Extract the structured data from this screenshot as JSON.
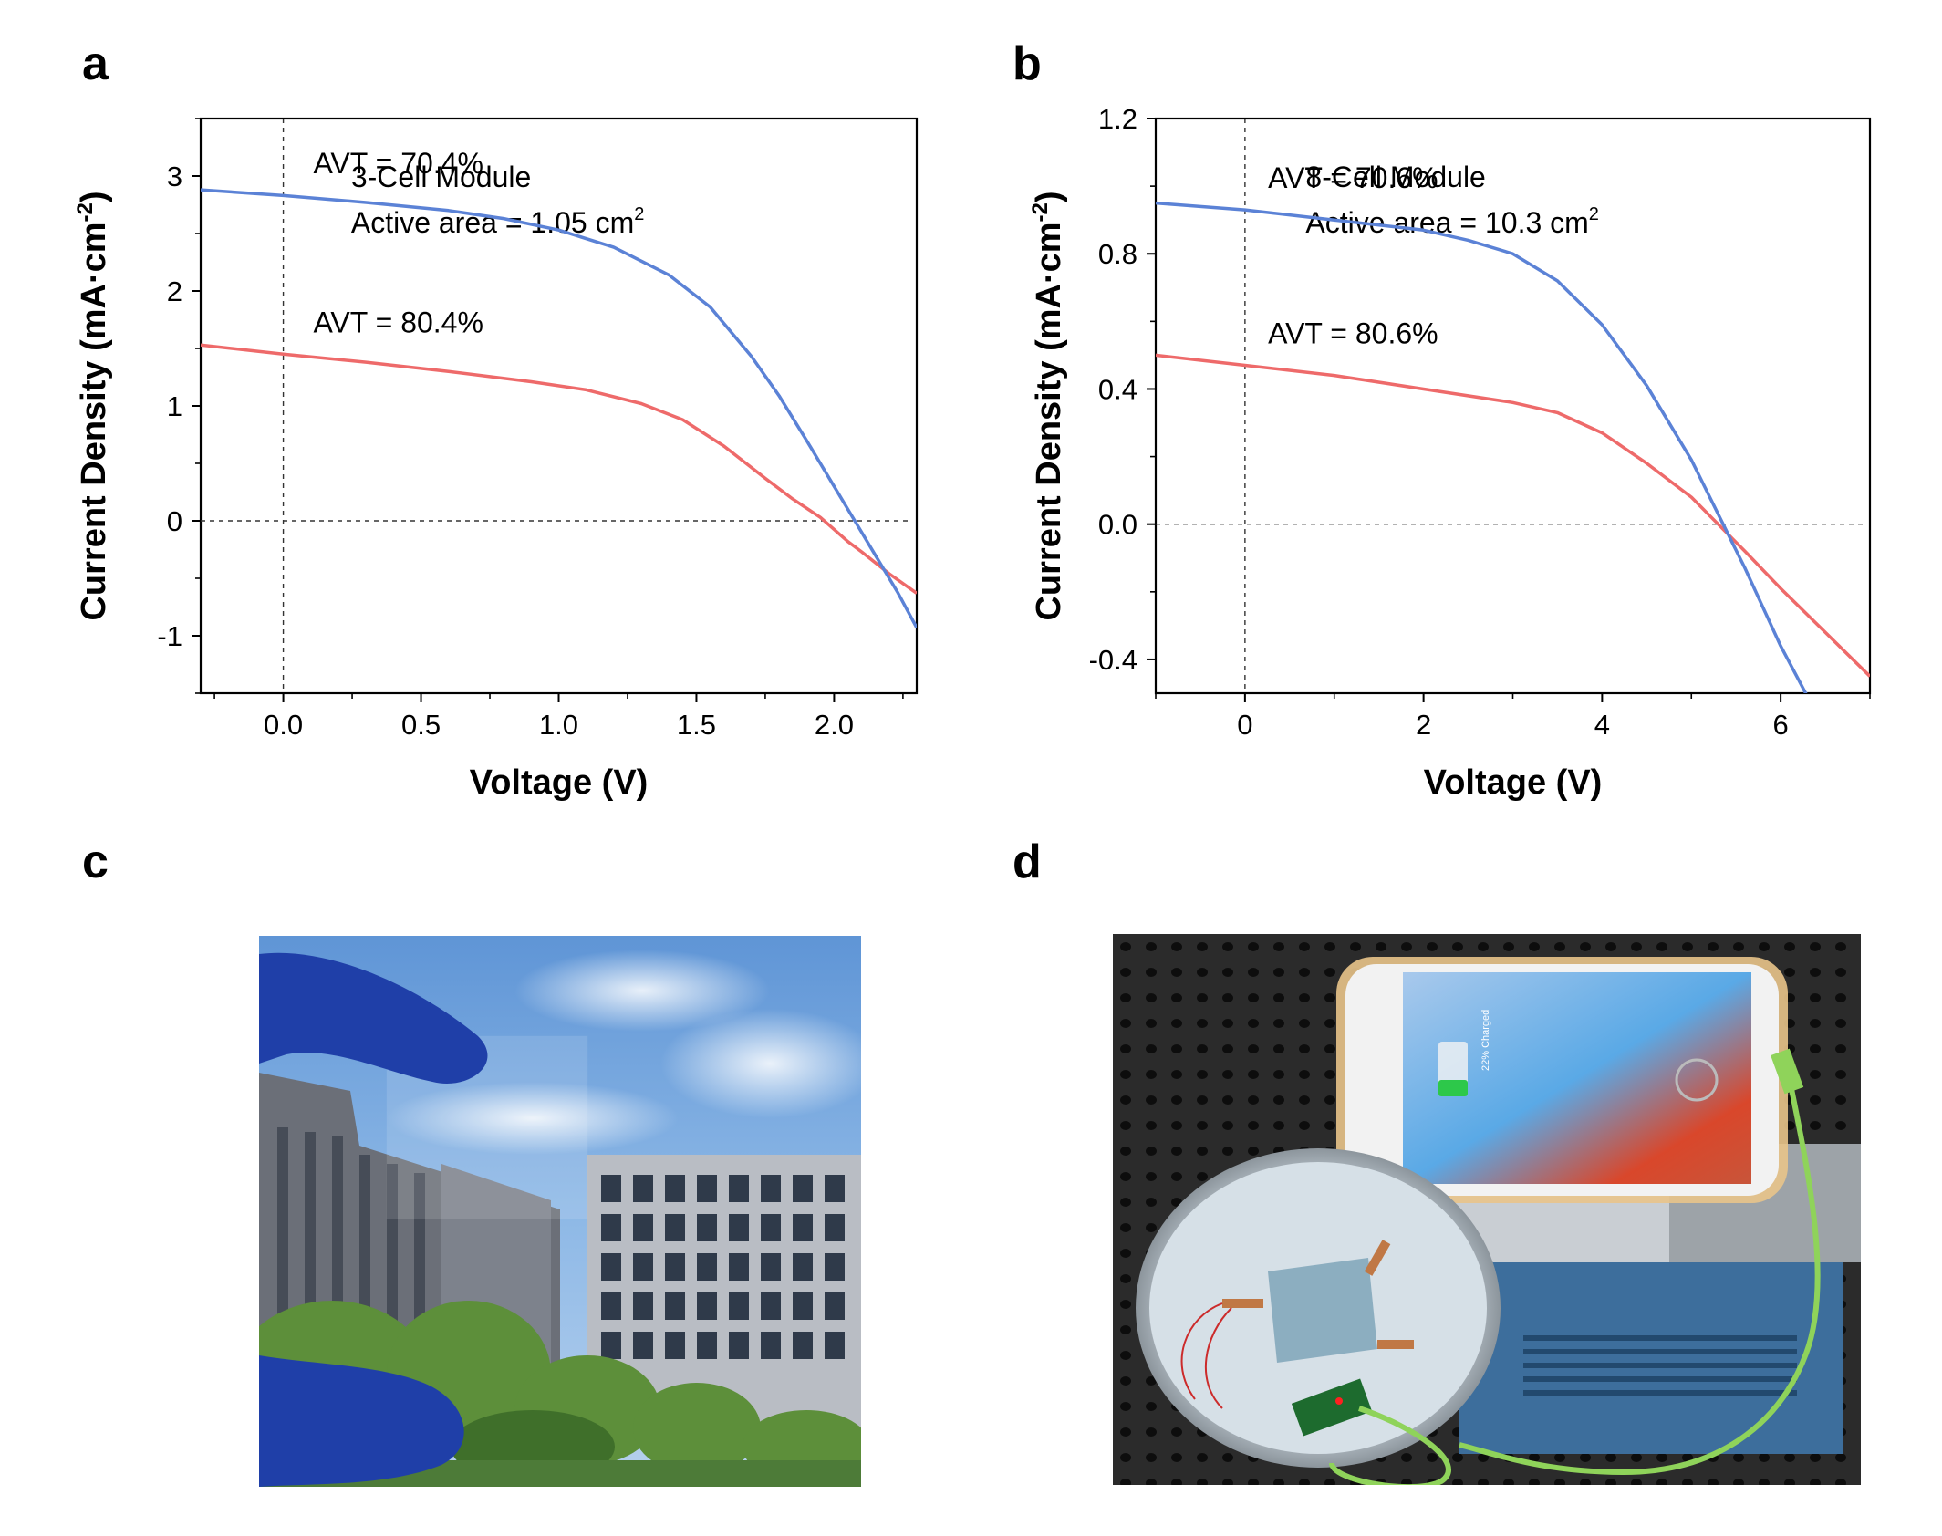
{
  "panels": {
    "a": "a",
    "b": "b",
    "c": "c",
    "d": "d"
  },
  "chart_data": [
    {
      "type": "line",
      "panel": "a",
      "annotation_line1": "3-Cell Module",
      "annotation_line2_prefix": "Active area = 1.05 cm",
      "annotation_line2_sup": "2",
      "xlabel": "Voltage (V)",
      "ylabel_main": "Current Density (mA·cm",
      "ylabel_sup": "-2",
      "ylabel_close": ")",
      "xlim": [
        -0.3,
        2.3
      ],
      "ylim": [
        3.5,
        -1.5
      ],
      "y_inverted": true,
      "xticks": [
        0.0,
        0.5,
        1.0,
        1.5,
        2.0
      ],
      "xtick_labels": [
        "0.0",
        "0.5",
        "1.0",
        "1.5",
        "2.0"
      ],
      "yticks": [
        -1,
        0,
        1,
        2,
        3
      ],
      "ytick_labels": [
        "-1",
        "0",
        "1",
        "2",
        "3"
      ],
      "series": [
        {
          "label": "AVT = 80.4%",
          "color": "#ee6a6a",
          "x": [
            -0.3,
            0.0,
            0.3,
            0.6,
            0.9,
            1.1,
            1.3,
            1.45,
            1.6,
            1.75,
            1.85,
            1.95,
            2.05,
            2.1,
            2.2,
            2.3
          ],
          "y": [
            1.53,
            1.45,
            1.38,
            1.3,
            1.21,
            1.14,
            1.02,
            0.88,
            0.65,
            0.37,
            0.19,
            0.03,
            -0.18,
            -0.27,
            -0.46,
            -0.63
          ]
        },
        {
          "label": "AVT = 70.4%",
          "color": "#5b82d6",
          "x": [
            -0.3,
            0.0,
            0.3,
            0.6,
            0.8,
            1.0,
            1.2,
            1.4,
            1.55,
            1.7,
            1.8,
            1.9,
            2.0,
            2.07,
            2.15,
            2.23,
            2.3
          ],
          "y": [
            2.88,
            2.83,
            2.77,
            2.7,
            2.63,
            2.53,
            2.38,
            2.14,
            1.86,
            1.43,
            1.09,
            0.7,
            0.3,
            0.02,
            -0.3,
            -0.62,
            -0.93
          ]
        }
      ]
    },
    {
      "type": "line",
      "panel": "b",
      "annotation_line1": "8-Cell Module",
      "annotation_line2_prefix": "Active area = 10.3 cm",
      "annotation_line2_sup": "2",
      "xlabel": "Voltage (V)",
      "ylabel_main": "Current Density (mA·cm",
      "ylabel_sup": "-2",
      "ylabel_close": ")",
      "xlim": [
        -1,
        7
      ],
      "ylim": [
        1.2,
        -0.5
      ],
      "y_inverted": true,
      "xticks": [
        0,
        2,
        4,
        6
      ],
      "xtick_labels": [
        "0",
        "2",
        "4",
        "6"
      ],
      "yticks": [
        -0.4,
        0.0,
        0.4,
        0.8,
        1.2
      ],
      "ytick_labels": [
        "-0.4",
        "0.0",
        "0.4",
        "0.8",
        "1.2"
      ],
      "series": [
        {
          "label": "AVT = 80.6%",
          "color": "#ee6a6a",
          "x": [
            -1,
            0,
            1,
            2,
            3,
            3.5,
            4,
            4.5,
            5,
            5.3,
            5.6,
            6,
            6.5,
            7
          ],
          "y": [
            0.5,
            0.47,
            0.44,
            0.4,
            0.36,
            0.33,
            0.27,
            0.18,
            0.08,
            0.0,
            -0.08,
            -0.19,
            -0.32,
            -0.45
          ]
        },
        {
          "label": "AVT = 70.6%",
          "color": "#5b82d6",
          "x": [
            -1,
            0,
            1,
            2,
            2.5,
            3,
            3.5,
            4,
            4.5,
            5,
            5.3,
            5.6,
            6,
            6.3
          ],
          "y": [
            0.95,
            0.93,
            0.9,
            0.87,
            0.84,
            0.8,
            0.72,
            0.59,
            0.41,
            0.19,
            0.03,
            -0.13,
            -0.36,
            -0.51
          ]
        }
      ]
    }
  ],
  "photos": {
    "c": "photo-semitransparent-module-outdoor",
    "d": "photo-module-charging-phone"
  },
  "phone_screen": {
    "status_text": "22% Charged"
  }
}
